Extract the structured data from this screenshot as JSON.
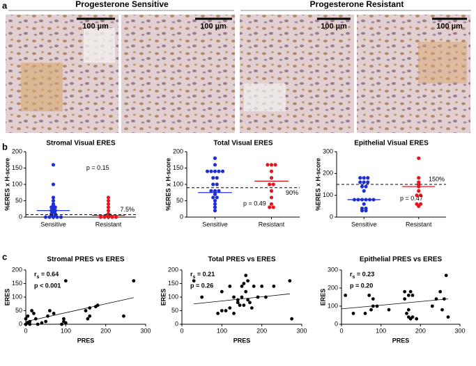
{
  "panel_labels": [
    "a",
    "b",
    "c"
  ],
  "images": {
    "groups": [
      "Progesterone Sensitive",
      "Progesterone Resistant"
    ],
    "scale_labels": [
      "100 µm",
      "100 µm",
      "100 µm",
      "100 µm"
    ]
  },
  "chart_data": [
    {
      "type": "strip",
      "title": "Stromal Visual ERES",
      "y_label": "%ERES x H-score",
      "ylim": [
        0,
        200
      ],
      "yticks": [
        0,
        50,
        100,
        150,
        200
      ],
      "reference_line": {
        "value": 7.5,
        "label": "7.5%"
      },
      "p_text": "p = 0.15",
      "series": [
        {
          "name": "Sensitive",
          "color": "#1f2fd6",
          "median": 20,
          "values": [
            160,
            100,
            60,
            50,
            40,
            35,
            30,
            30,
            25,
            20,
            20,
            15,
            10,
            10,
            5,
            5,
            0,
            0,
            0,
            0,
            0
          ]
        },
        {
          "name": "Resistant",
          "color": "#e8141e",
          "median": 5,
          "values": [
            60,
            50,
            40,
            30,
            20,
            10,
            5,
            5,
            0,
            0,
            0,
            0,
            0
          ]
        }
      ]
    },
    {
      "type": "strip",
      "title": "Total Visual ERES",
      "y_label": "%ERES x H-score",
      "ylim": [
        0,
        200
      ],
      "yticks": [
        0,
        50,
        100,
        150,
        200
      ],
      "reference_line": {
        "value": 90,
        "label": "90%"
      },
      "p_text": "p = 0.49",
      "series": [
        {
          "name": "Sensitive",
          "color": "#1f2fd6",
          "median": 75,
          "values": [
            180,
            160,
            140,
            140,
            140,
            140,
            140,
            120,
            120,
            100,
            100,
            80,
            80,
            80,
            70,
            60,
            60,
            50,
            40,
            30,
            20
          ]
        },
        {
          "name": "Resistant",
          "color": "#e8141e",
          "median": 110,
          "values": [
            160,
            160,
            160,
            140,
            120,
            100,
            100,
            80,
            60,
            40,
            30,
            30
          ]
        }
      ]
    },
    {
      "type": "strip",
      "title": "Epithelial Visual ERES",
      "y_label": "%ERES x H-score",
      "ylim": [
        0,
        300
      ],
      "yticks": [
        0,
        100,
        200,
        300
      ],
      "reference_line": {
        "value": 150,
        "label": "150%"
      },
      "p_text": "p = 0.47",
      "series": [
        {
          "name": "Sensitive",
          "color": "#1f2fd6",
          "median": 80,
          "values": [
            180,
            180,
            180,
            160,
            160,
            160,
            140,
            140,
            120,
            80,
            80,
            80,
            80,
            80,
            80,
            60,
            40,
            40,
            30,
            30
          ]
        },
        {
          "name": "Resistant",
          "color": "#e8141e",
          "median": 140,
          "values": [
            270,
            180,
            160,
            150,
            140,
            120,
            100,
            100,
            60,
            60,
            50
          ]
        }
      ]
    },
    {
      "type": "scatter",
      "title": "Stromal PRES vs ERES",
      "x_label": "PRES",
      "y_label": "ERES",
      "xlim": [
        0,
        300
      ],
      "xticks": [
        0,
        100,
        200,
        300
      ],
      "ylim": [
        0,
        200
      ],
      "yticks": [
        0,
        50,
        100,
        150,
        200
      ],
      "stat_symbol": "r",
      "stat_subscript": "s",
      "stat_text": " = 0.64",
      "p_text": "p < 0.001",
      "color": "#000000",
      "fit": {
        "x": [
          0,
          270
        ],
        "y": [
          10,
          98
        ]
      },
      "x": [
        0,
        5,
        10,
        15,
        10,
        20,
        25,
        30,
        40,
        50,
        55,
        60,
        70,
        90,
        95,
        100,
        95,
        100,
        150,
        160,
        155,
        160,
        175,
        180,
        245,
        270,
        0,
        5
      ],
      "y": [
        0,
        5,
        0,
        50,
        10,
        40,
        20,
        0,
        5,
        10,
        30,
        50,
        40,
        0,
        10,
        160,
        20,
        5,
        50,
        60,
        20,
        30,
        65,
        70,
        30,
        160,
        20,
        30
      ]
    },
    {
      "type": "scatter",
      "title": "Total PRES vs ERES",
      "x_label": "PRES",
      "y_label": "ERES",
      "xlim": [
        0,
        300
      ],
      "xticks": [
        0,
        100,
        200,
        300
      ],
      "ylim": [
        0,
        200
      ],
      "yticks": [
        0,
        50,
        100,
        150,
        200
      ],
      "stat_symbol": "r",
      "stat_subscript": "s",
      "stat_text": " = 0.21",
      "p_text": "p = 0.26",
      "color": "#000000",
      "fit": {
        "x": [
          30,
          270
        ],
        "y": [
          75,
          112
        ]
      },
      "x": [
        30,
        50,
        90,
        100,
        110,
        120,
        120,
        130,
        140,
        140,
        150,
        150,
        155,
        160,
        160,
        165,
        170,
        175,
        180,
        190,
        200,
        210,
        230,
        270,
        275,
        100,
        130,
        145,
        155,
        165
      ],
      "y": [
        160,
        100,
        40,
        50,
        50,
        60,
        140,
        40,
        80,
        90,
        100,
        140,
        150,
        180,
        120,
        160,
        80,
        60,
        140,
        100,
        140,
        100,
        140,
        160,
        20,
        120,
        100,
        70,
        70,
        90
      ]
    },
    {
      "type": "scatter",
      "title": "Epithelial PRES vs ERES",
      "x_label": "PRES",
      "y_label": "ERES",
      "xlim": [
        0,
        300
      ],
      "xticks": [
        0,
        100,
        200,
        300
      ],
      "ylim": [
        0,
        300
      ],
      "yticks": [
        0,
        100,
        200,
        300
      ],
      "stat_symbol": "r",
      "stat_subscript": "s",
      "stat_text": " = 0.23",
      "p_text": "p = 0.20",
      "color": "#000000",
      "fit": {
        "x": [
          0,
          270
        ],
        "y": [
          85,
          140
        ]
      },
      "x": [
        10,
        30,
        60,
        70,
        75,
        80,
        80,
        90,
        120,
        160,
        160,
        165,
        170,
        170,
        175,
        175,
        180,
        230,
        240,
        250,
        255,
        260,
        265,
        270,
        170,
        180,
        190
      ],
      "y": [
        160,
        60,
        60,
        160,
        80,
        100,
        140,
        100,
        80,
        180,
        140,
        60,
        80,
        40,
        30,
        180,
        160,
        100,
        140,
        180,
        80,
        140,
        270,
        40,
        160,
        40,
        30
      ]
    }
  ]
}
